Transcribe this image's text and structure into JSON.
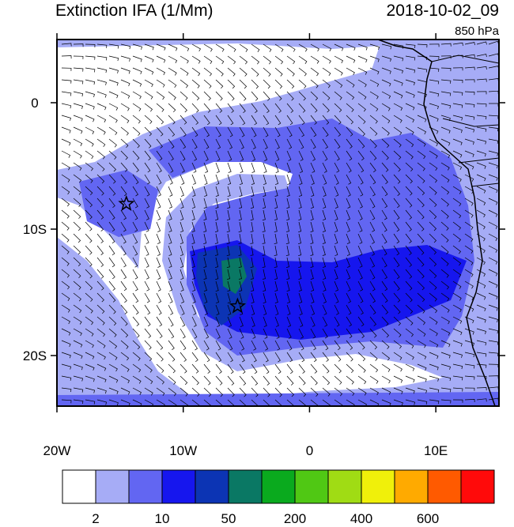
{
  "title": "Extinction IFA (1/Mm)",
  "time": "2018-10-02_09",
  "level": "850 hPa",
  "map": {
    "xlim": [
      -20,
      15
    ],
    "ylim": [
      -24,
      5
    ],
    "xticks": [
      {
        "value": -20,
        "label": "20W"
      },
      {
        "value": -10,
        "label": "10W"
      },
      0,
      {
        "value": 10,
        "label": "10E"
      }
    ],
    "yticks": [
      0,
      {
        "value": -10,
        "label": "10S"
      },
      {
        "value": -20,
        "label": "20S"
      }
    ],
    "markers": [
      {
        "lon": -14.5,
        "lat": -8
      },
      {
        "lon": -5.7,
        "lat": -16.1
      }
    ]
  },
  "colorbar": {
    "colors": [
      "#ffffff",
      "#a6acf6",
      "#6266f2",
      "#1616ee",
      "#0c34b4",
      "#0a7864",
      "#0aaa1e",
      "#50c814",
      "#a0dc14",
      "#f0f00a",
      "#ffaa00",
      "#ff5a00",
      "#ff0a0a"
    ],
    "levels": [
      2,
      null,
      10,
      null,
      50,
      null,
      200,
      null,
      400,
      null,
      600,
      null
    ]
  }
}
